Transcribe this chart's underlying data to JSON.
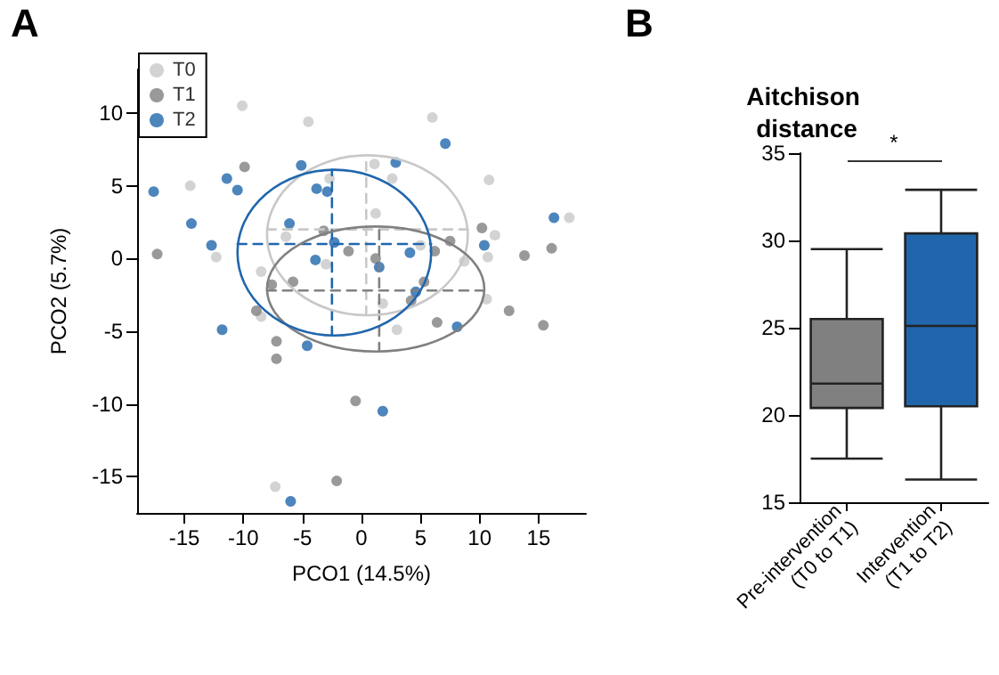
{
  "chart_data": [
    {
      "type": "scatter",
      "xlabel": "PCO1 (14.5%)",
      "ylabel": "PCO2 (5.7%)",
      "xlim": [
        -19,
        19
      ],
      "ylim": [
        -17.5,
        13
      ],
      "xticks": [
        -15,
        -10,
        -5,
        0,
        5,
        10,
        15
      ],
      "yticks": [
        -15,
        -10,
        -5,
        0,
        5,
        10
      ],
      "grid": false,
      "legend": "top left",
      "marker": "circle",
      "annotations": [
        "A"
      ],
      "series": [
        {
          "name": "T0",
          "color": "#c8c8c8",
          "x": [
            -10.1,
            -4.5,
            -14.5,
            -2.7,
            -12.3,
            -6.4,
            -3.0,
            -8.5,
            -8.5,
            -7.3,
            3.0,
            6.0,
            1.1,
            2.6,
            10.8,
            1.2,
            17.6,
            11.3,
            5.0,
            8.7,
            10.7,
            1.8,
            10.6
          ],
          "values": [
            10.5,
            9.4,
            5.0,
            5.5,
            0.1,
            1.5,
            -0.4,
            -0.9,
            -4.0,
            -15.7,
            -4.9,
            9.7,
            6.5,
            5.5,
            5.4,
            3.1,
            2.8,
            1.6,
            0.9,
            -0.2,
            0.1,
            -3.1,
            -2.8
          ]
        },
        {
          "name": "T1",
          "color": "#808080",
          "x": [
            -9.9,
            -17.3,
            -3.2,
            -1.1,
            -5.8,
            -7.6,
            -8.9,
            -7.2,
            -7.2,
            -0.5,
            -2.1,
            6.4,
            12.5,
            15.4,
            10.2,
            1.2,
            6.2,
            7.5,
            13.8,
            16.1,
            5.3,
            4.2
          ],
          "values": [
            6.3,
            0.3,
            1.9,
            0.5,
            -1.6,
            -1.8,
            -3.6,
            -5.7,
            -6.9,
            -9.8,
            -15.3,
            -4.4,
            -3.6,
            -4.6,
            2.1,
            0.0,
            0.5,
            1.2,
            0.2,
            0.7,
            -1.6,
            -2.9
          ]
        },
        {
          "name": "T2",
          "color": "#2166ac",
          "x": [
            -17.6,
            -11.4,
            -10.5,
            -5.1,
            -3.8,
            -2.9,
            -14.4,
            -6.1,
            -12.7,
            -3.9,
            -11.8,
            -4.6,
            -2.3,
            1.8,
            -6.0,
            8.1,
            7.1,
            2.9,
            16.3,
            10.4,
            1.5,
            4.1,
            4.6
          ],
          "values": [
            4.6,
            5.5,
            4.7,
            6.4,
            4.8,
            4.6,
            2.4,
            2.4,
            0.9,
            -0.1,
            -4.9,
            -6.0,
            1.1,
            -10.5,
            -16.7,
            -4.7,
            7.9,
            6.6,
            2.8,
            0.9,
            -0.6,
            0.4,
            -2.3
          ]
        },
        {
          "type": "line",
          "marker": "none",
          "line_style": "dashed",
          "color": "#c8c8c8",
          "x": [
            -8.0,
            9.0
          ],
          "values": [
            2.0,
            2.0
          ]
        },
        {
          "type": "line",
          "marker": "none",
          "line_style": "dashed",
          "color": "#c8c8c8",
          "x": [
            0.4,
            0.4
          ],
          "values": [
            -3.9,
            7.1
          ]
        },
        {
          "type": "line",
          "marker": "none",
          "line_style": "dashed",
          "color": "#808080",
          "x": [
            -8.0,
            10.4
          ],
          "values": [
            -2.2,
            -2.2
          ]
        },
        {
          "type": "line",
          "marker": "none",
          "line_style": "dashed",
          "color": "#808080",
          "x": [
            1.5,
            1.5
          ],
          "values": [
            -6.4,
            2.2
          ]
        },
        {
          "type": "line",
          "marker": "none",
          "line_style": "dashed",
          "color": "#2166ac",
          "x": [
            -10.5,
            5.9
          ],
          "values": [
            1.0,
            1.0
          ]
        },
        {
          "type": "line",
          "marker": "none",
          "line_style": "dashed",
          "color": "#2166ac",
          "x": [
            -2.5,
            -2.5
          ],
          "values": [
            -5.3,
            6.1
          ]
        }
      ]
    },
    {
      "type": "box",
      "title": "Aitchison distance",
      "categories": [
        "Pre-intervention (T0 to T1)",
        "Intervention (T1 to T2)"
      ],
      "boxes": [
        {
          "low": 17.5,
          "q1": 20.4,
          "median": 21.8,
          "q3": 25.5,
          "high": 29.5
        },
        {
          "low": 16.3,
          "q1": 20.5,
          "median": 25.1,
          "q3": 30.4,
          "high": 32.9
        }
      ],
      "colors": [
        "#808080",
        "#2166ac"
      ],
      "ylim": [
        15,
        35
      ],
      "yticks": [
        15,
        20,
        25,
        30,
        35
      ],
      "grid": false,
      "annotations": [
        "B",
        "*"
      ]
    }
  ]
}
